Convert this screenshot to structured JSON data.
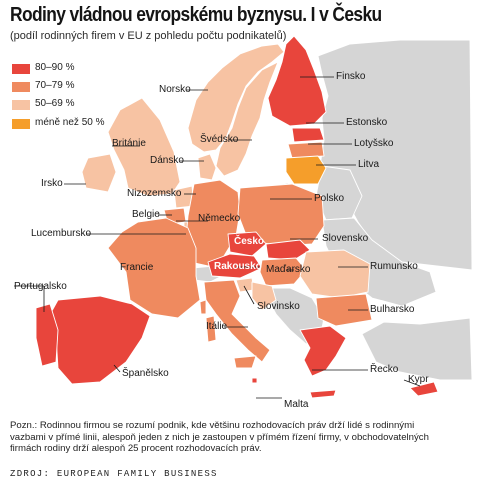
{
  "title": "Rodiny vládnou evropskému byznysu. I v Česku",
  "subtitle": "(podíl rodinných firem v EU z pohledu počtu podnikatelů)",
  "colors": {
    "sea": "#ffffff",
    "non_eu": "#d5d5d5",
    "border": "#ffffff",
    "cat_80_90": "#e8453c",
    "cat_70_79": "#ef8a5f",
    "cat_50_69": "#f7c3a3",
    "cat_under_50": "#f59e2b",
    "leader": "#1a1a1a"
  },
  "legend": [
    {
      "label": "80–90 %",
      "color_key": "cat_80_90"
    },
    {
      "label": "70–79 %",
      "color_key": "cat_70_79"
    },
    {
      "label": "50–69 %",
      "color_key": "cat_50_69"
    },
    {
      "label": "méně než 50 %",
      "color_key": "cat_under_50"
    }
  ],
  "countries": {
    "norsko": "Norsko",
    "finsko": "Finsko",
    "estonsko": "Estonsko",
    "svedsko": "Švédsko",
    "lotyssko": "Lotyšsko",
    "britanie": "Británie",
    "dansko": "Dánsko",
    "litva": "Litva",
    "irsko": "Irsko",
    "nizozemsko": "Nizozemsko",
    "polsko": "Polsko",
    "belgie": "Belgie",
    "nemecko": "Německo",
    "lucembursko": "Lucembursko",
    "cesko": "Česko",
    "slovensko": "Slovensko",
    "francie": "Francie",
    "rakousko": "Rakousko",
    "madarsko": "Maďarsko",
    "rumunsko": "Rumunsko",
    "portugalsko": "Portugalsko",
    "slovinsko": "Slovinsko",
    "bulharsko": "Bulharsko",
    "italie": "Itálie",
    "spanelsko": "Španělsko",
    "recko": "Řecko",
    "kypr": "Kypr",
    "malta": "Malta"
  },
  "note": "Pozn.: Rodinnou firmou se rozumí podnik, kde většinu rozhodovacích práv drží lidé s rodinnými vazbami v přímé linii, alespoň jeden z nich je zastoupen v přímém řízení firmy, v obchodovatelných firmách rodiny drží alespoň 25 procent rozhodovacích práv.",
  "source": "ZDROJ: EUROPEAN FAMILY BUSINESS"
}
